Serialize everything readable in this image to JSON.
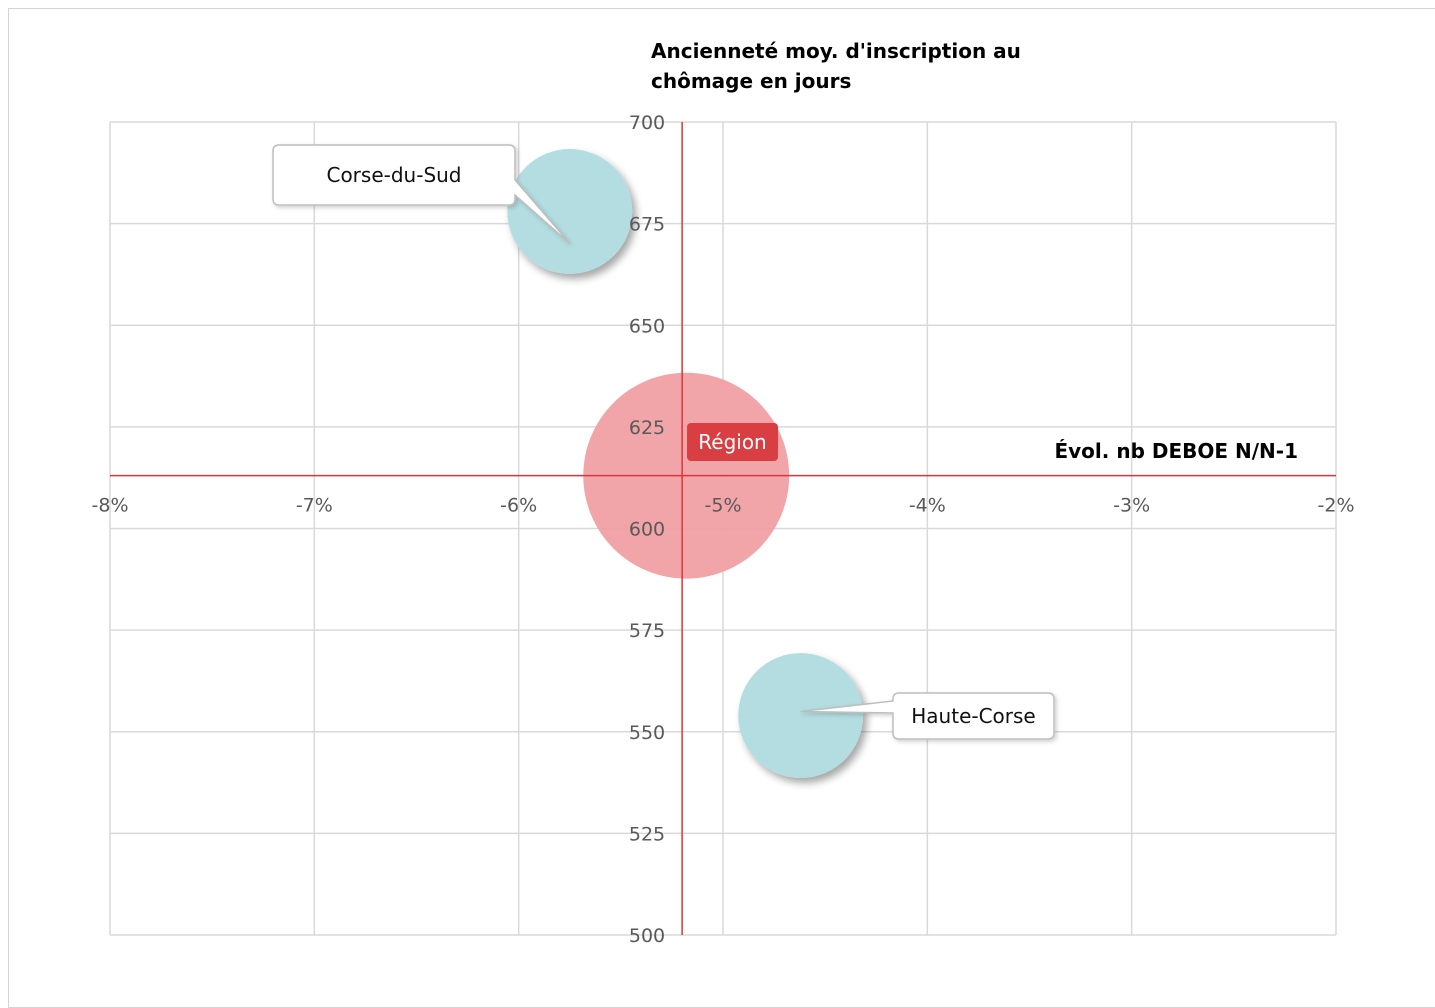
{
  "chart_data": {
    "type": "bubble",
    "ylabel_lines": [
      "Ancienneté moy. d'inscription au",
      "chômage en jours"
    ],
    "xlabel": "Évol. nb DEBOE N/N-1",
    "xlim": [
      -8,
      -2
    ],
    "ylim": [
      500,
      700
    ],
    "x_ticks": [
      -8,
      -7,
      -6,
      -5,
      -4,
      -3,
      -2
    ],
    "x_tick_labels": [
      "-8%",
      "-7%",
      "-6%",
      "-5%",
      "-4%",
      "-3%",
      "-2%"
    ],
    "y_ticks": [
      500,
      525,
      550,
      575,
      600,
      625,
      650,
      675,
      700
    ],
    "y_tick_labels": [
      "500",
      "525",
      "550",
      "575",
      "600",
      "625",
      "650",
      "675",
      "700"
    ],
    "axes_cross": {
      "x": -5.2,
      "y": 613
    },
    "grid": true,
    "points": [
      {
        "label": "Corse-du-Sud",
        "x": -5.75,
        "y": 678,
        "size": 0.8,
        "color": "#b3dde0"
      },
      {
        "label": "Haute-Corse",
        "x": -4.62,
        "y": 554,
        "size": 0.8,
        "color": "#b3dde0"
      },
      {
        "label": "Région",
        "x": -5.18,
        "y": 613,
        "size": 1.32,
        "color": "#f0a0a3"
      }
    ],
    "colors": {
      "grid": "#d9d9d9",
      "axis": "#d9363b",
      "region_label_bg": "#d93e42"
    }
  }
}
